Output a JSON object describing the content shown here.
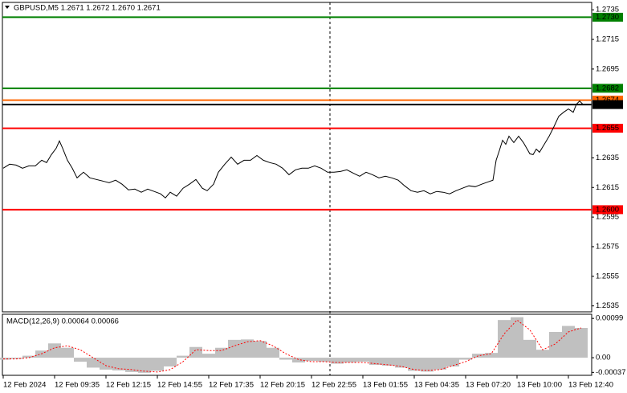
{
  "chart_data": [
    {
      "type": "line",
      "title": "GBPUSD,M5  1.2671 1.2672 1.2670 1.2671",
      "x": [
        0,
        4,
        8,
        12,
        16,
        20,
        24,
        27,
        30,
        33,
        35,
        37,
        40,
        43,
        46,
        50,
        54,
        58,
        62,
        66,
        70,
        74,
        78,
        82,
        86,
        90,
        94,
        98,
        101,
        104,
        108,
        112,
        116,
        120,
        124,
        127,
        131,
        134,
        138,
        142,
        146,
        150,
        154,
        158,
        162,
        166,
        170,
        174,
        178,
        182,
        186,
        190,
        194,
        198,
        202,
        206,
        210,
        214,
        218,
        222,
        226,
        230,
        234,
        238,
        242,
        246,
        250,
        254,
        258,
        262,
        266,
        270,
        274,
        278,
        282,
        286,
        290,
        294,
        298,
        302,
        305,
        307,
        309,
        311,
        313,
        315,
        318,
        321,
        324,
        326,
        328,
        330,
        332,
        334,
        337,
        340,
        343,
        346,
        349,
        352,
        355,
        357,
        359,
        361
      ],
      "series": [
        {
          "color": "#000000",
          "values": [
            1.2628,
            1.26307,
            1.26301,
            1.2628,
            1.26296,
            1.26296,
            1.26334,
            1.26318,
            1.26372,
            1.26415,
            1.26464,
            1.26415,
            1.26334,
            1.2628,
            1.26215,
            1.26253,
            1.26215,
            1.26204,
            1.26193,
            1.26182,
            1.26199,
            1.26172,
            1.26134,
            1.26139,
            1.26118,
            1.26139,
            1.26123,
            1.26107,
            1.2608,
            1.26118,
            1.26091,
            1.26145,
            1.26172,
            1.26204,
            1.26145,
            1.26128,
            1.26172,
            1.26253,
            1.26307,
            1.26355,
            1.26307,
            1.26334,
            1.26334,
            1.26366,
            1.26334,
            1.26318,
            1.26307,
            1.2628,
            1.26236,
            1.26269,
            1.2628,
            1.2628,
            1.26296,
            1.2628,
            1.26253,
            1.26253,
            1.26258,
            1.26269,
            1.26247,
            1.26226,
            1.26253,
            1.26236,
            1.26215,
            1.26226,
            1.26215,
            1.26199,
            1.26161,
            1.26128,
            1.26118,
            1.26128,
            1.26107,
            1.26123,
            1.26118,
            1.26107,
            1.26128,
            1.26145,
            1.26161,
            1.26155,
            1.26172,
            1.26188,
            1.26199,
            1.26334,
            1.26399,
            1.26469,
            1.26442,
            1.26496,
            1.26453,
            1.26496,
            1.26453,
            1.26415,
            1.26377,
            1.26372,
            1.26409,
            1.26388,
            1.26442,
            1.26496,
            1.26561,
            1.26631,
            1.26658,
            1.2668,
            1.26658,
            1.26712,
            1.26734,
            1.26712
          ]
        }
      ],
      "levels": [
        {
          "value": 1.273,
          "label": "1.2730",
          "color": "#008000"
        },
        {
          "value": 1.2682,
          "label": "1.2682",
          "color": "#008000"
        },
        {
          "value": 1.2674,
          "label": "1.2674",
          "color": "#ff6600"
        },
        {
          "value": 1.2671,
          "label": "1.2671",
          "color": "#000000"
        },
        {
          "value": 1.2655,
          "label": "1.2655",
          "color": "#ff0000"
        },
        {
          "value": 1.26,
          "label": "1.2600",
          "color": "#ff0000"
        }
      ],
      "xlim": [
        0,
        366.5
      ],
      "ylim": [
        1.2531,
        1.274
      ],
      "yticks": [
        1.2735,
        1.2715,
        1.2695,
        1.2635,
        1.2615,
        1.2595,
        1.2575,
        1.2555,
        1.2535
      ],
      "xticks": [
        {
          "value": 0,
          "label": "12 Feb 2024"
        },
        {
          "value": 32,
          "label": "12 Feb 09:35"
        },
        {
          "value": 64,
          "label": "12 Feb 12:15"
        },
        {
          "value": 96,
          "label": "12 Feb 14:55"
        },
        {
          "value": 128,
          "label": "12 Feb 17:35"
        },
        {
          "value": 160,
          "label": "12 Feb 20:15"
        },
        {
          "value": 192,
          "label": "12 Feb 22:55"
        },
        {
          "value": 224,
          "label": "13 Feb 01:55"
        },
        {
          "value": 256,
          "label": "13 Feb 04:35"
        },
        {
          "value": 288,
          "label": "13 Feb 07:20"
        },
        {
          "value": 320,
          "label": "13 Feb 10:00"
        },
        {
          "value": 352,
          "label": "13 Feb 12:40"
        }
      ]
    },
    {
      "type": "macd",
      "title": "MACD(12,26,9) 0.00064 0.00066",
      "x": [
        0,
        8,
        16,
        24,
        32,
        40,
        48,
        56,
        64,
        72,
        80,
        88,
        96,
        104,
        112,
        120,
        128,
        136,
        144,
        152,
        160,
        168,
        176,
        184,
        192,
        200,
        208,
        216,
        224,
        232,
        240,
        248,
        256,
        264,
        272,
        280,
        288,
        296,
        304,
        312,
        320,
        328,
        336,
        344,
        352,
        360
      ],
      "series": [
        {
          "kind": "bar",
          "color": "#c0c0c0",
          "values": [
            -5e-05,
            -3e-05,
            5e-05,
            0.00018,
            0.00036,
            0.00025,
            -0.0001,
            -0.00025,
            -0.0003,
            -0.00032,
            -0.00036,
            -0.00038,
            -0.00033,
            -0.00022,
            5e-05,
            0.00027,
            0.0001,
            0.00025,
            0.00045,
            0.00046,
            0.00042,
            0.00025,
            -5e-05,
            -0.00012,
            -8e-05,
            -0.0001,
            -0.00015,
            -0.00012,
            -0.0001,
            -0.00018,
            -0.0002,
            -0.00025,
            -0.00033,
            -0.00035,
            -0.0003,
            -0.00022,
            -5e-05,
            0.0001,
            0.00012,
            0.00095,
            0.00102,
            0.00045,
            0.0002,
            0.00065,
            0.0008,
            0.00075
          ]
        },
        {
          "kind": "line",
          "color": "#ff0000",
          "values": [
            -3e-05,
            -3e-05,
            0,
            0.0001,
            0.00025,
            0.0003,
            0.0002,
            0,
            -0.0002,
            -0.00028,
            -0.0003,
            -0.00034,
            -0.00036,
            -0.0003,
            -0.0001,
            0.0002,
            0.00018,
            0.00018,
            0.0003,
            0.0004,
            0.00043,
            0.0003,
            0.0001,
            -5e-05,
            -0.0001,
            -0.0001,
            -0.00012,
            -0.00012,
            -0.00012,
            -0.00015,
            -0.00018,
            -0.00022,
            -0.0003,
            -0.00032,
            -0.0003,
            -0.0002,
            -0.0001,
            5e-05,
            0.0001,
            0.0006,
            0.00095,
            0.0007,
            0.0002,
            0.00035,
            0.00065,
            0.00075
          ]
        }
      ],
      "xlim": [
        0,
        366.5
      ],
      "ylim": [
        -0.000444,
        0.001095
      ],
      "yticks": [
        0.00099,
        {
          "value": 0,
          "label": "0.00"
        },
        -0.00037
      ]
    }
  ]
}
